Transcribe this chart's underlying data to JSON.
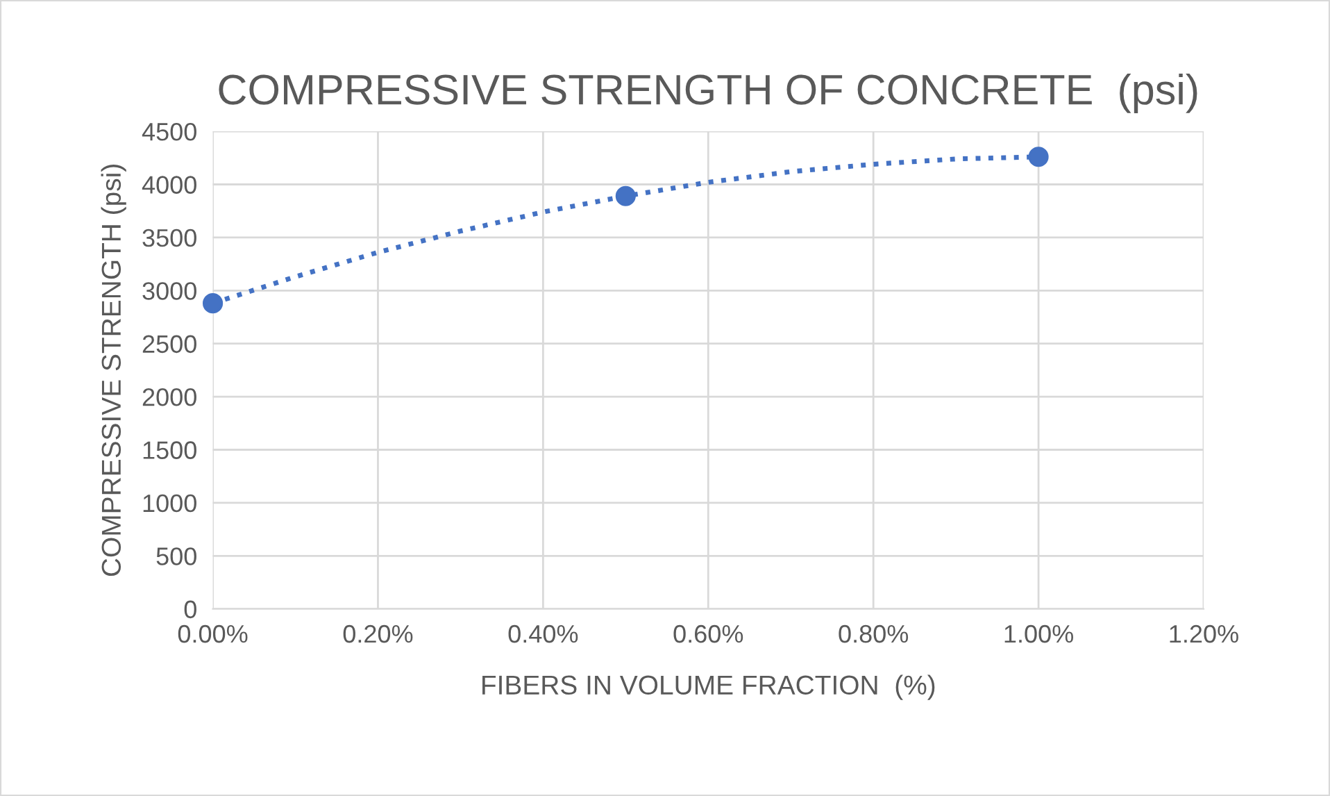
{
  "chart_data": {
    "type": "scatter",
    "title": "COMPRESSIVE STRENGTH OF CONCRETE  (psi)",
    "xlabel": "FIBERS IN VOLUME FRACTION  (%)",
    "ylabel": "COMPRESSIVE STRENGTH (psi)",
    "series": [
      {
        "color": "#4472c4",
        "marker": "circle",
        "x": [
          0,
          0.5,
          1.0
        ],
        "values": [
          2880,
          3890,
          4260
        ]
      },
      {
        "type": "line",
        "color": "#4472c4",
        "marker": "none",
        "line_style": "dotted",
        "x": [
          0,
          0.1,
          0.2,
          0.3,
          0.4,
          0.5,
          0.6,
          0.7,
          0.8,
          0.9,
          1.0
        ],
        "values": [
          2880,
          3130,
          3360,
          3560,
          3740,
          3890,
          4020,
          4120,
          4190,
          4240,
          4260
        ]
      }
    ],
    "xlim": [
      0,
      1.2
    ],
    "xticks": [
      {
        "value": 0,
        "label": "0.00%"
      },
      {
        "value": 0.2,
        "label": "0.20%"
      },
      {
        "value": 0.4,
        "label": "0.40%"
      },
      {
        "value": 0.6,
        "label": "0.60%"
      },
      {
        "value": 0.8,
        "label": "0.80%"
      },
      {
        "value": 1.0,
        "label": "1.00%"
      },
      {
        "value": 1.2,
        "label": "1.20%"
      }
    ],
    "ylim": [
      0,
      4500
    ],
    "yticks": [
      0,
      500,
      1000,
      1500,
      2000,
      2500,
      3000,
      3500,
      4000,
      4500
    ],
    "grid": true,
    "legend": false
  }
}
